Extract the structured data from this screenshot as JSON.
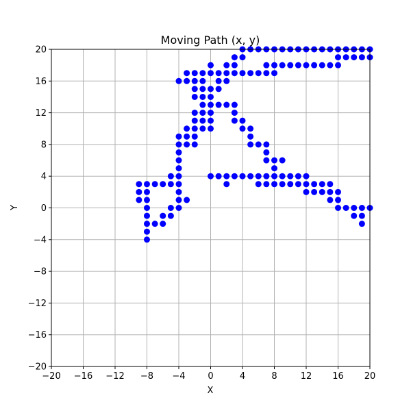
{
  "chart_data": {
    "type": "scatter",
    "title": "Moving Path (x, y)",
    "xlabel": "X",
    "ylabel": "Y",
    "xlim": [
      -20,
      20
    ],
    "ylim": [
      -20,
      20
    ],
    "xticks": [
      -20,
      -16,
      -12,
      -8,
      -4,
      0,
      4,
      8,
      12,
      16,
      20
    ],
    "yticks": [
      -20,
      -16,
      -12,
      -8,
      -4,
      0,
      4,
      8,
      12,
      16,
      20
    ],
    "grid": true,
    "marker_color": "#0000ff",
    "series": [
      {
        "points": [
          [
            0,
            18
          ],
          [
            0,
            17
          ],
          [
            1,
            17
          ],
          [
            2,
            17
          ],
          [
            2,
            18
          ],
          [
            3,
            18
          ],
          [
            3,
            19
          ],
          [
            4,
            19
          ],
          [
            4,
            20
          ],
          [
            5,
            20
          ],
          [
            6,
            20
          ],
          [
            7,
            20
          ],
          [
            8,
            20
          ],
          [
            9,
            20
          ],
          [
            10,
            20
          ],
          [
            11,
            20
          ],
          [
            12,
            20
          ],
          [
            13,
            20
          ],
          [
            14,
            20
          ],
          [
            15,
            20
          ],
          [
            16,
            20
          ],
          [
            17,
            20
          ],
          [
            18,
            20
          ],
          [
            19,
            20
          ],
          [
            20,
            20
          ],
          [
            20,
            19
          ],
          [
            19,
            19
          ],
          [
            18,
            19
          ],
          [
            17,
            19
          ],
          [
            16,
            19
          ],
          [
            16,
            18
          ],
          [
            15,
            18
          ],
          [
            14,
            18
          ],
          [
            13,
            18
          ],
          [
            12,
            18
          ],
          [
            11,
            18
          ],
          [
            10,
            18
          ],
          [
            9,
            18
          ],
          [
            8,
            18
          ],
          [
            7,
            18
          ],
          [
            7,
            17
          ],
          [
            8,
            17
          ],
          [
            6,
            17
          ],
          [
            5,
            17
          ],
          [
            4,
            17
          ],
          [
            3,
            17
          ],
          [
            -1,
            17
          ],
          [
            -2,
            17
          ],
          [
            -3,
            17
          ],
          [
            -3,
            16
          ],
          [
            -4,
            16
          ],
          [
            -2,
            16
          ],
          [
            -1,
            16
          ],
          [
            -2,
            15
          ],
          [
            -1,
            15
          ],
          [
            0,
            15
          ],
          [
            1,
            15
          ],
          [
            1,
            16
          ],
          [
            2,
            16
          ],
          [
            -2,
            14
          ],
          [
            -1,
            14
          ],
          [
            0,
            14
          ],
          [
            0,
            13
          ],
          [
            -1,
            13
          ],
          [
            1,
            13
          ],
          [
            2,
            13
          ],
          [
            3,
            13
          ],
          [
            3,
            12
          ],
          [
            3,
            11
          ],
          [
            4,
            11
          ],
          [
            4,
            10
          ],
          [
            5,
            10
          ],
          [
            5,
            9
          ],
          [
            5,
            8
          ],
          [
            6,
            8
          ],
          [
            7,
            8
          ],
          [
            7,
            7
          ],
          [
            7,
            6
          ],
          [
            8,
            6
          ],
          [
            9,
            6
          ],
          [
            8,
            5
          ],
          [
            8,
            4
          ],
          [
            0,
            12
          ],
          [
            -1,
            12
          ],
          [
            -2,
            12
          ],
          [
            -2,
            11
          ],
          [
            -1,
            11
          ],
          [
            0,
            11
          ],
          [
            0,
            10
          ],
          [
            -1,
            10
          ],
          [
            -2,
            10
          ],
          [
            -3,
            10
          ],
          [
            -2,
            9
          ],
          [
            -3,
            9
          ],
          [
            -4,
            9
          ],
          [
            -2,
            8
          ],
          [
            -3,
            8
          ],
          [
            -4,
            8
          ],
          [
            -4,
            7
          ],
          [
            -4,
            6
          ],
          [
            -4,
            5
          ],
          [
            -4,
            4
          ],
          [
            -5,
            4
          ],
          [
            -4,
            3
          ],
          [
            -5,
            3
          ],
          [
            -6,
            3
          ],
          [
            -7,
            3
          ],
          [
            -8,
            3
          ],
          [
            -9,
            3
          ],
          [
            -9,
            2
          ],
          [
            -8,
            2
          ],
          [
            -9,
            1
          ],
          [
            -8,
            1
          ],
          [
            -4,
            2
          ],
          [
            -4,
            1
          ],
          [
            -3,
            1
          ],
          [
            -4,
            0
          ],
          [
            -8,
            0
          ],
          [
            -5,
            0
          ],
          [
            -5,
            -1
          ],
          [
            -6,
            -1
          ],
          [
            -6,
            -2
          ],
          [
            -7,
            -2
          ],
          [
            -8,
            -2
          ],
          [
            -8,
            -1
          ],
          [
            -8,
            -3
          ],
          [
            -8,
            -4
          ],
          [
            0,
            4
          ],
          [
            1,
            4
          ],
          [
            2,
            4
          ],
          [
            2,
            3
          ],
          [
            3,
            4
          ],
          [
            4,
            4
          ],
          [
            5,
            4
          ],
          [
            6,
            4
          ],
          [
            7,
            4
          ],
          [
            9,
            4
          ],
          [
            10,
            4
          ],
          [
            11,
            4
          ],
          [
            12,
            4
          ],
          [
            6,
            3
          ],
          [
            7,
            3
          ],
          [
            8,
            3
          ],
          [
            9,
            3
          ],
          [
            10,
            3
          ],
          [
            11,
            3
          ],
          [
            12,
            3
          ],
          [
            13,
            3
          ],
          [
            14,
            3
          ],
          [
            15,
            3
          ],
          [
            12,
            2
          ],
          [
            13,
            2
          ],
          [
            14,
            2
          ],
          [
            15,
            2
          ],
          [
            16,
            2
          ],
          [
            15,
            1
          ],
          [
            16,
            1
          ],
          [
            16,
            0
          ],
          [
            17,
            0
          ],
          [
            18,
            0
          ],
          [
            19,
            0
          ],
          [
            20,
            0
          ],
          [
            18,
            -1
          ],
          [
            19,
            -1
          ],
          [
            19,
            -2
          ]
        ]
      }
    ]
  }
}
